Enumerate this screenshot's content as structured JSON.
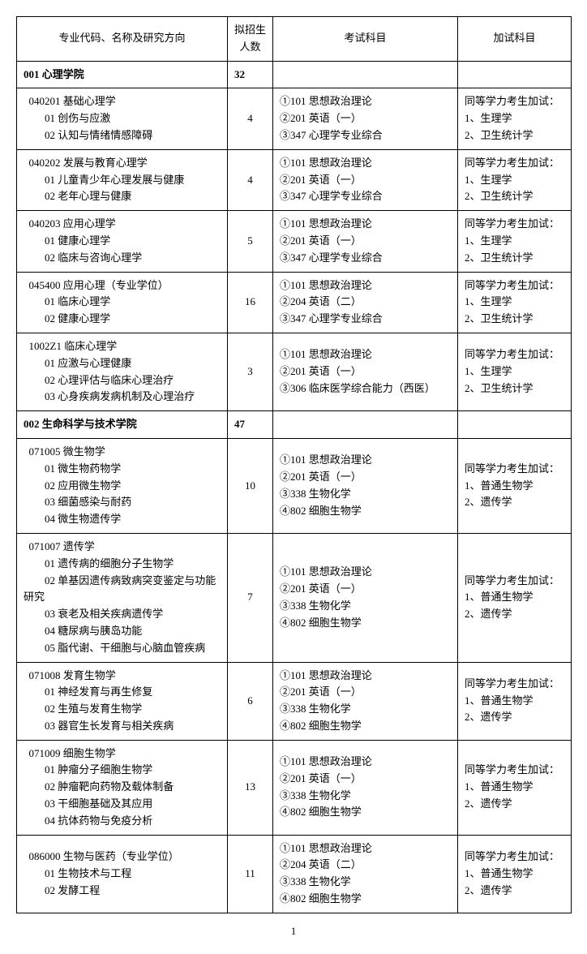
{
  "headers": {
    "col1": "专业代码、名称及研究方向",
    "col2": "拟招生人数",
    "col3": "考试科目",
    "col4": "加试科目"
  },
  "page_number": "1",
  "sections": [
    {
      "title": "001 心理学院",
      "quota": "32",
      "rows": [
        {
          "major": [
            "040201 基础心理学",
            "01 创伤与应激",
            "02 认知与情绪情感障碍"
          ],
          "quota": "4",
          "subjects": [
            "①101 思想政治理论",
            "②201 英语（一）",
            "③347 心理学专业综合"
          ],
          "extra": [
            "同等学力考生加试：",
            "1、生理学",
            "2、卫生统计学"
          ]
        },
        {
          "major": [
            "040202 发展与教育心理学",
            "01 儿童青少年心理发展与健康",
            "02 老年心理与健康"
          ],
          "quota": "4",
          "subjects": [
            "①101 思想政治理论",
            "②201 英语（一）",
            "③347 心理学专业综合"
          ],
          "extra": [
            "同等学力考生加试：",
            "1、生理学",
            "2、卫生统计学"
          ]
        },
        {
          "major": [
            "040203 应用心理学",
            "01 健康心理学",
            "02 临床与咨询心理学"
          ],
          "quota": "5",
          "subjects": [
            "①101 思想政治理论",
            "②201 英语（一）",
            "③347 心理学专业综合"
          ],
          "extra": [
            "同等学力考生加试：",
            "1、生理学",
            "2、卫生统计学"
          ]
        },
        {
          "major": [
            "045400 应用心理（专业学位）",
            "01 临床心理学",
            "02 健康心理学"
          ],
          "quota": "16",
          "subjects": [
            "①101 思想政治理论",
            "②204 英语（二）",
            "③347 心理学专业综合"
          ],
          "extra": [
            "同等学力考生加试：",
            "1、生理学",
            "2、卫生统计学"
          ]
        },
        {
          "major": [
            "1002Z1 临床心理学",
            "01 应激与心理健康",
            "02 心理评估与临床心理治疗",
            "03 心身疾病发病机制及心理治疗"
          ],
          "quota": "3",
          "subjects": [
            "①101 思想政治理论",
            "②201 英语（一）",
            "③306 临床医学综合能力（西医）"
          ],
          "extra": [
            "同等学力考生加试：",
            "1、生理学",
            "2、卫生统计学"
          ]
        }
      ]
    },
    {
      "title": "002 生命科学与技术学院",
      "quota": "47",
      "rows": [
        {
          "major": [
            "071005 微生物学",
            "01 微生物药物学",
            "02 应用微生物学",
            "03 细菌感染与耐药",
            "04 微生物遗传学"
          ],
          "quota": "10",
          "subjects": [
            "①101 思想政治理论",
            "②201 英语（一）",
            "③338 生物化学",
            "④802 细胞生物学"
          ],
          "extra": [
            "同等学力考生加试：",
            "1、普通生物学",
            "2、遗传学"
          ]
        },
        {
          "major": [
            "071007 遗传学",
            "01 遗传病的细胞分子生物学",
            "02 单基因遗传病致病突变鉴定与功能研究",
            "03 衰老及相关疾病遗传学",
            "04 糖尿病与胰岛功能",
            "05 脂代谢、干细胞与心脑血管疾病"
          ],
          "quota": "7",
          "subjects": [
            "①101 思想政治理论",
            "②201 英语（一）",
            "③338 生物化学",
            "④802 细胞生物学"
          ],
          "extra": [
            "同等学力考生加试：",
            "1、普通生物学",
            "2、遗传学"
          ]
        },
        {
          "major": [
            "071008 发育生物学",
            "01 神经发育与再生修复",
            "02 生殖与发育生物学",
            "03 器官生长发育与相关疾病"
          ],
          "quota": "6",
          "subjects": [
            "①101 思想政治理论",
            "②201 英语（一）",
            "③338 生物化学",
            "④802 细胞生物学"
          ],
          "extra": [
            "同等学力考生加试：",
            "1、普通生物学",
            "2、遗传学"
          ]
        },
        {
          "major": [
            "071009 细胞生物学",
            "01 肿瘤分子细胞生物学",
            "02 肿瘤靶向药物及载体制备",
            "03 干细胞基础及其应用",
            "04 抗体药物与免疫分析"
          ],
          "quota": "13",
          "subjects": [
            "①101 思想政治理论",
            "②201 英语（一）",
            "③338 生物化学",
            "④802 细胞生物学"
          ],
          "extra": [
            "同等学力考生加试：",
            "1、普通生物学",
            "2、遗传学"
          ]
        },
        {
          "major": [
            "086000 生物与医药（专业学位）",
            "01 生物技术与工程",
            "02 发酵工程"
          ],
          "quota": "11",
          "subjects": [
            "①101 思想政治理论",
            "②204 英语（二）",
            "③338 生物化学",
            "④802 细胞生物学"
          ],
          "extra": [
            "同等学力考生加试：",
            "1、普通生物学",
            "2、遗传学"
          ]
        }
      ]
    }
  ]
}
